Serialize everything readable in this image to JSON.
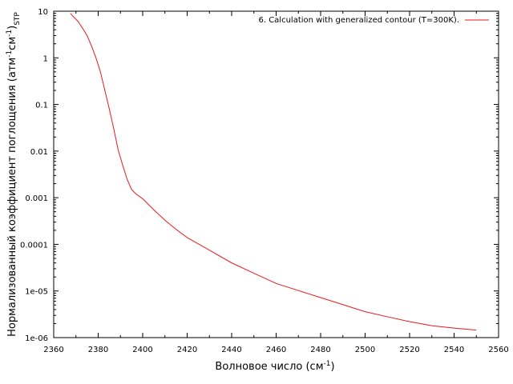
{
  "chart_data": {
    "type": "line",
    "title": "",
    "xlabel": {
      "base": "Волновое число (см",
      "sup": "-1",
      "end": ")"
    },
    "ylabel": {
      "t1": "Нормализованный коэффициент поглощения (атм",
      "s1": "-1",
      "t2": "см",
      "s2": "-1",
      "t3": ")",
      "sub": "STP"
    },
    "xlim": [
      2360,
      2560
    ],
    "ylim": [
      1e-06,
      10
    ],
    "yscale": "log",
    "x_ticks": [
      2360,
      2380,
      2400,
      2420,
      2440,
      2460,
      2480,
      2500,
      2520,
      2540,
      2560
    ],
    "x_tick_labels": [
      "2360",
      "2380",
      "2400",
      "2420",
      "2440",
      "2460",
      "2480",
      "2500",
      "2520",
      "2540",
      "2560"
    ],
    "y_ticks": [
      1e-06,
      1e-05,
      0.0001,
      0.001,
      0.01,
      0.1,
      1,
      10
    ],
    "y_tick_labels": [
      "1e-06",
      "1e-05",
      "0.0001",
      "0.001",
      "0.01",
      "0.1",
      "1",
      "10"
    ],
    "grid": false,
    "legend_position": "top-right",
    "series": [
      {
        "name": "6. Calculation with generalized contour (T=300K).",
        "color": "#e8191c",
        "x": [
          2367.5,
          2369,
          2371,
          2373,
          2375,
          2377,
          2379,
          2381,
          2383,
          2385,
          2387,
          2389,
          2391,
          2393,
          2395,
          2397,
          2400,
          2405,
          2410,
          2415,
          2420,
          2430,
          2440,
          2450,
          2460,
          2470,
          2480,
          2490,
          2500,
          2510,
          2520,
          2530,
          2540,
          2550
        ],
        "y": [
          9,
          7.5,
          6,
          4.3,
          3,
          1.8,
          1,
          0.5,
          0.2,
          0.08,
          0.03,
          0.0105,
          0.005,
          0.0025,
          0.0015,
          0.0012,
          0.00095,
          0.00055,
          0.00033,
          0.00021,
          0.00014,
          7.5e-05,
          4e-05,
          2.4e-05,
          1.45e-05,
          1.02e-05,
          7.2e-06,
          5.1e-06,
          3.6e-06,
          2.8e-06,
          2.2e-06,
          1.8e-06,
          1.6e-06,
          1.45e-06
        ]
      }
    ]
  }
}
